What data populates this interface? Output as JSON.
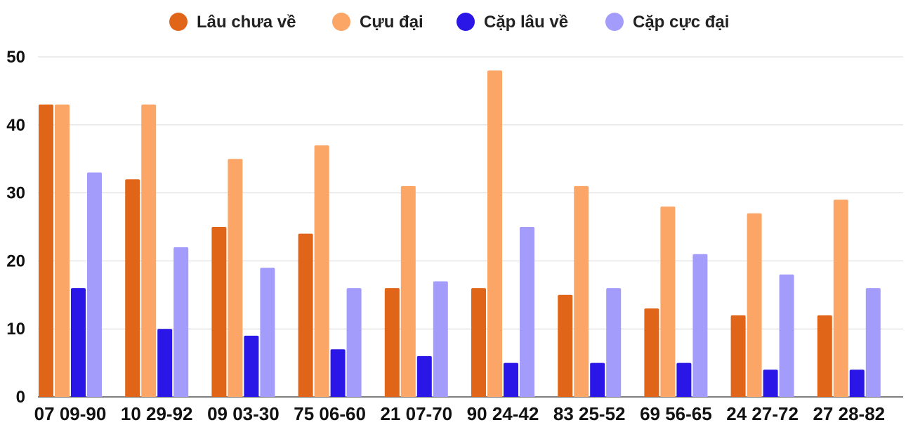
{
  "chart_data": {
    "type": "bar",
    "title": "",
    "xlabel": "",
    "ylabel": "",
    "ylim": [
      0,
      50
    ],
    "yticks": [
      0,
      10,
      20,
      30,
      40,
      50
    ],
    "grid": true,
    "legend_position": "top-center",
    "categories": [
      "07 09-90",
      "10 29-92",
      "09 03-30",
      "75 06-60",
      "21 07-70",
      "90 24-42",
      "83 25-52",
      "69 56-65",
      "24 27-72",
      "27 28-82"
    ],
    "series": [
      {
        "name": "Lâu chưa về",
        "color": "#e06519",
        "values": [
          43,
          32,
          25,
          24,
          16,
          16,
          15,
          13,
          12,
          12
        ]
      },
      {
        "name": "Cựu đại",
        "color": "#fba566",
        "values": [
          43,
          43,
          35,
          37,
          31,
          48,
          31,
          28,
          27,
          29
        ]
      },
      {
        "name": "Cặp lâu về",
        "color": "#2a16e6",
        "values": [
          16,
          10,
          9,
          7,
          6,
          5,
          5,
          5,
          4,
          4
        ]
      },
      {
        "name": "Cặp cực đại",
        "color": "#a39cfb",
        "values": [
          33,
          22,
          19,
          16,
          17,
          25,
          16,
          21,
          18,
          16
        ]
      }
    ]
  }
}
